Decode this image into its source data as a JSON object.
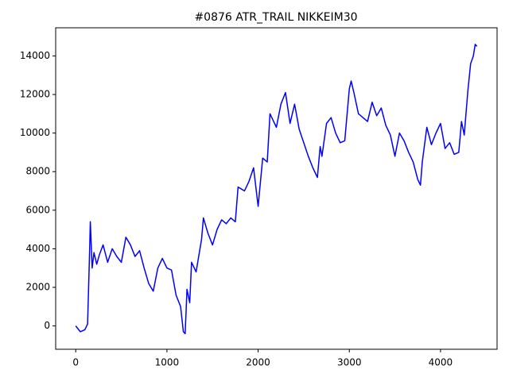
{
  "chart_data": {
    "type": "line",
    "title": "#0876 ATR_TRAIL NIKKEIM30",
    "x": [
      0,
      50,
      100,
      130,
      150,
      160,
      180,
      200,
      230,
      260,
      300,
      350,
      400,
      450,
      500,
      550,
      600,
      650,
      700,
      750,
      800,
      850,
      900,
      950,
      1000,
      1050,
      1100,
      1150,
      1180,
      1200,
      1220,
      1250,
      1270,
      1320,
      1380,
      1400,
      1450,
      1500,
      1550,
      1600,
      1650,
      1700,
      1750,
      1780,
      1850,
      1900,
      1950,
      2000,
      2050,
      2100,
      2130,
      2200,
      2250,
      2300,
      2350,
      2400,
      2450,
      2500,
      2550,
      2600,
      2650,
      2680,
      2700,
      2750,
      2800,
      2850,
      2900,
      2950,
      3000,
      3020,
      3050,
      3100,
      3150,
      3200,
      3250,
      3300,
      3350,
      3400,
      3450,
      3500,
      3550,
      3600,
      3650,
      3700,
      3750,
      3780,
      3800,
      3850,
      3900,
      3950,
      4000,
      4050,
      4100,
      4150,
      4200,
      4230,
      4260,
      4300,
      4330,
      4360,
      4380,
      4400
    ],
    "series": [
      {
        "color": "#0000ff",
        "values": [
          0,
          -300,
          -200,
          100,
          3500,
          5400,
          3000,
          3800,
          3200,
          3700,
          4200,
          3300,
          4000,
          3600,
          3300,
          4600,
          4200,
          3600,
          3900,
          3000,
          2200,
          1800,
          3000,
          3500,
          3000,
          2900,
          1600,
          1000,
          -300,
          -400,
          1900,
          1200,
          3300,
          2800,
          4500,
          5600,
          4800,
          4200,
          5000,
          5500,
          5300,
          5600,
          5400,
          7200,
          7000,
          7500,
          8200,
          6200,
          8700,
          8500,
          11000,
          10300,
          11500,
          12100,
          10500,
          11500,
          10200,
          9500,
          8800,
          8200,
          7700,
          9300,
          8800,
          10500,
          10800,
          10000,
          9500,
          9600,
          12300,
          12700,
          12100,
          11000,
          10800,
          10600,
          11600,
          10900,
          11300,
          10400,
          9900,
          8800,
          10000,
          9600,
          9000,
          8500,
          7600,
          7300,
          8500,
          10300,
          9400,
          10000,
          10500,
          9200,
          9500,
          8900,
          9000,
          10600,
          9900,
          12200,
          13600,
          14000,
          14600,
          14500
        ]
      }
    ],
    "xlim": [
      -220,
      4620
    ],
    "ylim": [
      -1210,
      15460
    ],
    "xticks": [
      0,
      1000,
      2000,
      3000,
      4000
    ],
    "yticks": [
      0,
      2000,
      4000,
      6000,
      8000,
      10000,
      12000,
      14000
    ]
  }
}
